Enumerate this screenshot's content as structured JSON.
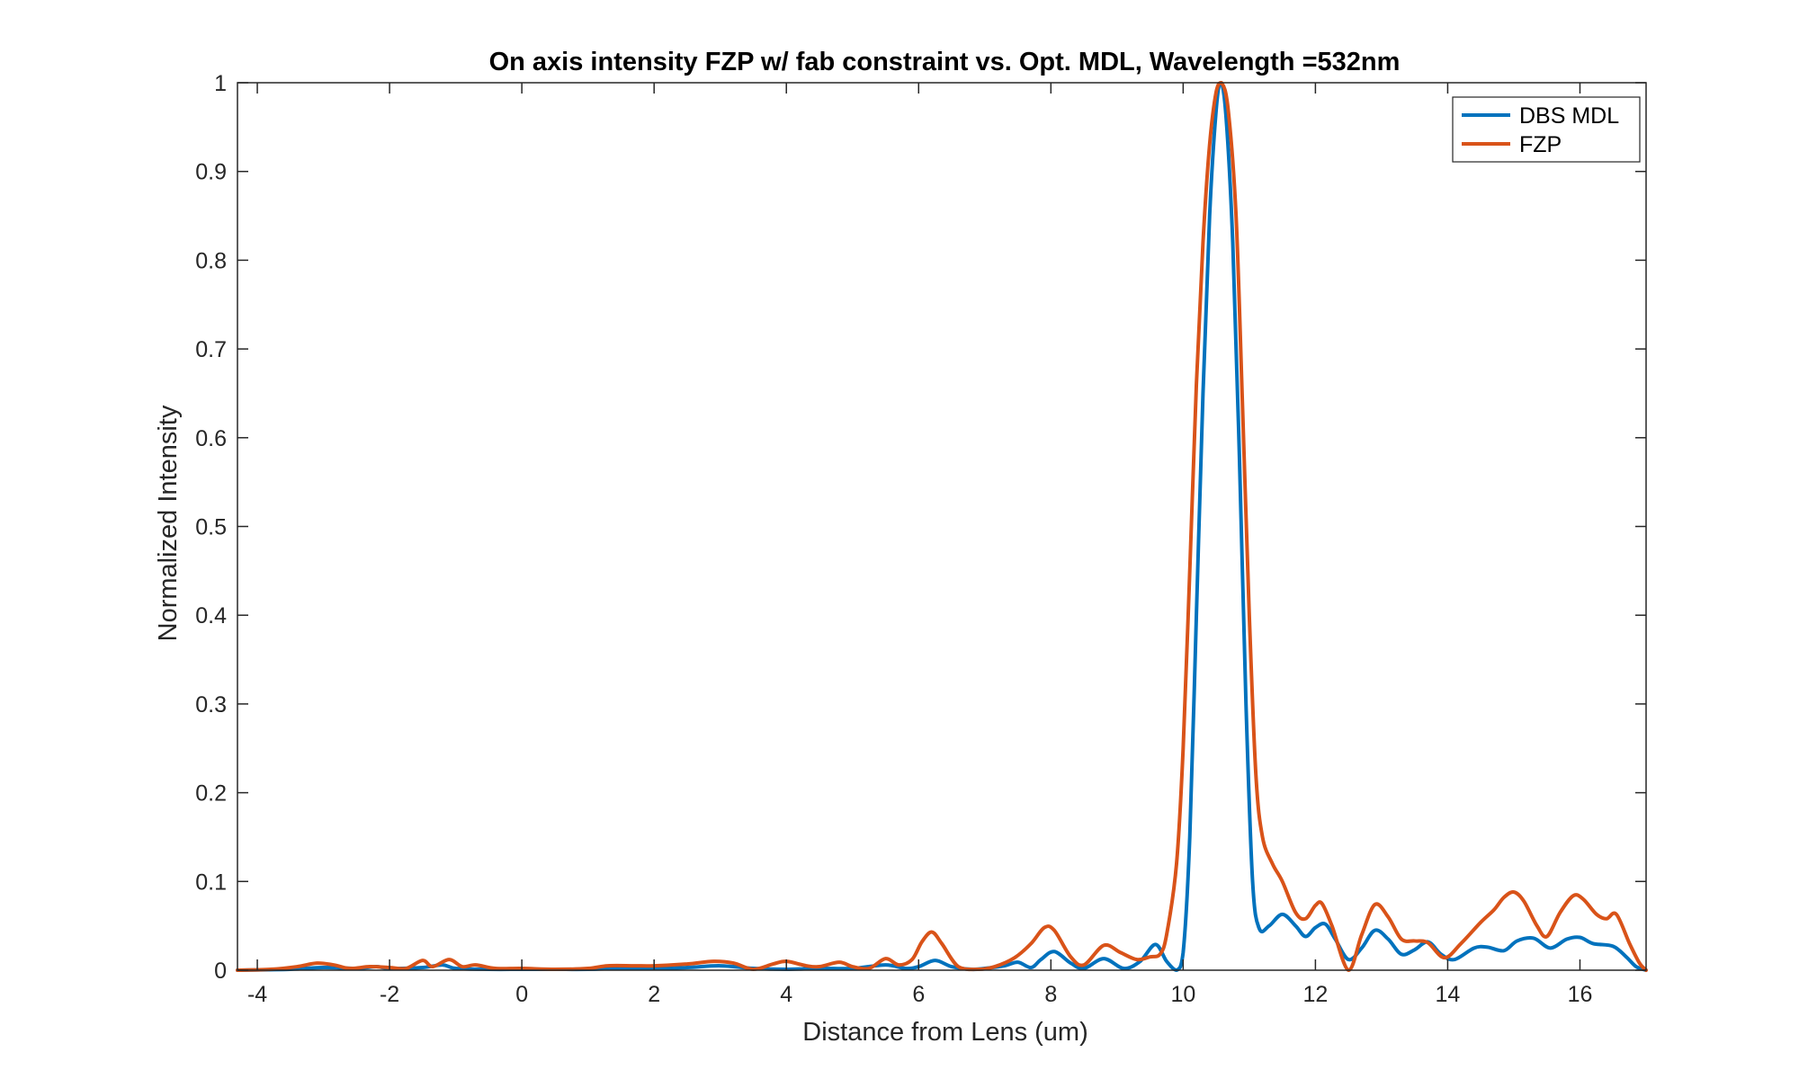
{
  "chart_data": {
    "type": "line",
    "title": "On axis intensity FZP w/ fab constraint vs. Opt. MDL, Wavelength =532nm",
    "xlabel": "Distance from Lens (um)",
    "ylabel": "Normalized Intensity",
    "xlim": [
      -4.3,
      17.0
    ],
    "ylim": [
      0,
      1
    ],
    "xticks": [
      -4,
      -2,
      0,
      2,
      4,
      6,
      8,
      10,
      12,
      14,
      16
    ],
    "yticks": [
      0,
      0.1,
      0.2,
      0.3,
      0.4,
      0.5,
      0.6,
      0.7,
      0.8,
      0.9,
      1
    ],
    "ytick_labels": [
      "0",
      "0.1",
      "0.2",
      "0.3",
      "0.4",
      "0.5",
      "0.6",
      "0.7",
      "0.8",
      "0.9",
      "1"
    ],
    "grid": false,
    "legend_position": "top-right",
    "series": [
      {
        "name": "DBS MDL",
        "color": "#0072BD",
        "points": [
          [
            -4.3,
            0.0
          ],
          [
            -3.5,
            0.001
          ],
          [
            -3.0,
            0.003
          ],
          [
            -2.5,
            0.002
          ],
          [
            -2.2,
            0.004
          ],
          [
            -2.0,
            0.002
          ],
          [
            -1.5,
            0.003
          ],
          [
            -1.2,
            0.006
          ],
          [
            -1.0,
            0.002
          ],
          [
            -0.5,
            0.001
          ],
          [
            0.0,
            0.001
          ],
          [
            0.5,
            0.001
          ],
          [
            1.0,
            0.001
          ],
          [
            1.5,
            0.002
          ],
          [
            2.0,
            0.002
          ],
          [
            2.5,
            0.003
          ],
          [
            3.0,
            0.005
          ],
          [
            3.5,
            0.002
          ],
          [
            4.0,
            0.001
          ],
          [
            4.5,
            0.002
          ],
          [
            5.0,
            0.002
          ],
          [
            5.5,
            0.006
          ],
          [
            5.8,
            0.002
          ],
          [
            6.0,
            0.004
          ],
          [
            6.25,
            0.011
          ],
          [
            6.5,
            0.004
          ],
          [
            6.8,
            0.001
          ],
          [
            7.0,
            0.002
          ],
          [
            7.3,
            0.005
          ],
          [
            7.5,
            0.009
          ],
          [
            7.7,
            0.003
          ],
          [
            7.85,
            0.012
          ],
          [
            8.05,
            0.021
          ],
          [
            8.3,
            0.008
          ],
          [
            8.5,
            0.002
          ],
          [
            8.8,
            0.013
          ],
          [
            9.1,
            0.002
          ],
          [
            9.35,
            0.01
          ],
          [
            9.58,
            0.029
          ],
          [
            9.75,
            0.01
          ],
          [
            9.9,
            0.0
          ],
          [
            10.0,
            0.02
          ],
          [
            10.1,
            0.15
          ],
          [
            10.2,
            0.4
          ],
          [
            10.3,
            0.65
          ],
          [
            10.4,
            0.85
          ],
          [
            10.5,
            0.97
          ],
          [
            10.57,
            1.0
          ],
          [
            10.65,
            0.96
          ],
          [
            10.75,
            0.82
          ],
          [
            10.85,
            0.58
          ],
          [
            10.95,
            0.3
          ],
          [
            11.05,
            0.1
          ],
          [
            11.15,
            0.047
          ],
          [
            11.3,
            0.05
          ],
          [
            11.5,
            0.063
          ],
          [
            11.7,
            0.05
          ],
          [
            11.85,
            0.038
          ],
          [
            12.0,
            0.048
          ],
          [
            12.15,
            0.052
          ],
          [
            12.3,
            0.035
          ],
          [
            12.5,
            0.012
          ],
          [
            12.7,
            0.025
          ],
          [
            12.9,
            0.045
          ],
          [
            13.1,
            0.035
          ],
          [
            13.3,
            0.018
          ],
          [
            13.5,
            0.023
          ],
          [
            13.7,
            0.032
          ],
          [
            13.9,
            0.018
          ],
          [
            14.1,
            0.012
          ],
          [
            14.4,
            0.025
          ],
          [
            14.6,
            0.026
          ],
          [
            14.85,
            0.022
          ],
          [
            15.05,
            0.033
          ],
          [
            15.3,
            0.036
          ],
          [
            15.55,
            0.025
          ],
          [
            15.8,
            0.035
          ],
          [
            16.0,
            0.037
          ],
          [
            16.2,
            0.03
          ],
          [
            16.5,
            0.027
          ],
          [
            16.7,
            0.015
          ],
          [
            16.85,
            0.004
          ],
          [
            17.0,
            0.0
          ]
        ]
      },
      {
        "name": "FZP",
        "color": "#D95319",
        "points": [
          [
            -4.3,
            0.0
          ],
          [
            -3.8,
            0.001
          ],
          [
            -3.4,
            0.004
          ],
          [
            -3.1,
            0.008
          ],
          [
            -2.85,
            0.006
          ],
          [
            -2.6,
            0.002
          ],
          [
            -2.3,
            0.004
          ],
          [
            -2.0,
            0.003
          ],
          [
            -1.75,
            0.002
          ],
          [
            -1.5,
            0.011
          ],
          [
            -1.35,
            0.004
          ],
          [
            -1.1,
            0.012
          ],
          [
            -0.9,
            0.004
          ],
          [
            -0.7,
            0.006
          ],
          [
            -0.4,
            0.002
          ],
          [
            0.0,
            0.002
          ],
          [
            0.5,
            0.001
          ],
          [
            1.0,
            0.002
          ],
          [
            1.3,
            0.005
          ],
          [
            1.7,
            0.005
          ],
          [
            2.0,
            0.005
          ],
          [
            2.5,
            0.007
          ],
          [
            2.9,
            0.01
          ],
          [
            3.2,
            0.008
          ],
          [
            3.5,
            0.001
          ],
          [
            3.8,
            0.007
          ],
          [
            4.0,
            0.01
          ],
          [
            4.3,
            0.005
          ],
          [
            4.5,
            0.004
          ],
          [
            4.8,
            0.009
          ],
          [
            5.0,
            0.004
          ],
          [
            5.25,
            0.002
          ],
          [
            5.5,
            0.013
          ],
          [
            5.7,
            0.006
          ],
          [
            5.9,
            0.012
          ],
          [
            6.05,
            0.032
          ],
          [
            6.2,
            0.043
          ],
          [
            6.35,
            0.03
          ],
          [
            6.6,
            0.004
          ],
          [
            6.9,
            0.001
          ],
          [
            7.15,
            0.004
          ],
          [
            7.45,
            0.014
          ],
          [
            7.7,
            0.03
          ],
          [
            7.9,
            0.048
          ],
          [
            8.05,
            0.045
          ],
          [
            8.3,
            0.015
          ],
          [
            8.5,
            0.006
          ],
          [
            8.8,
            0.028
          ],
          [
            9.05,
            0.02
          ],
          [
            9.3,
            0.012
          ],
          [
            9.5,
            0.015
          ],
          [
            9.65,
            0.018
          ],
          [
            9.75,
            0.04
          ],
          [
            9.9,
            0.12
          ],
          [
            10.0,
            0.25
          ],
          [
            10.1,
            0.45
          ],
          [
            10.2,
            0.66
          ],
          [
            10.3,
            0.82
          ],
          [
            10.4,
            0.93
          ],
          [
            10.5,
            0.99
          ],
          [
            10.58,
            1.0
          ],
          [
            10.68,
            0.97
          ],
          [
            10.8,
            0.85
          ],
          [
            10.9,
            0.63
          ],
          [
            11.0,
            0.4
          ],
          [
            11.1,
            0.22
          ],
          [
            11.2,
            0.15
          ],
          [
            11.35,
            0.12
          ],
          [
            11.5,
            0.1
          ],
          [
            11.7,
            0.065
          ],
          [
            11.85,
            0.058
          ],
          [
            12.0,
            0.073
          ],
          [
            12.1,
            0.075
          ],
          [
            12.25,
            0.05
          ],
          [
            12.5,
            0.0
          ],
          [
            12.7,
            0.04
          ],
          [
            12.9,
            0.074
          ],
          [
            13.1,
            0.06
          ],
          [
            13.3,
            0.035
          ],
          [
            13.5,
            0.033
          ],
          [
            13.7,
            0.031
          ],
          [
            13.95,
            0.014
          ],
          [
            14.2,
            0.03
          ],
          [
            14.5,
            0.054
          ],
          [
            14.7,
            0.068
          ],
          [
            14.85,
            0.082
          ],
          [
            15.0,
            0.088
          ],
          [
            15.15,
            0.078
          ],
          [
            15.35,
            0.05
          ],
          [
            15.5,
            0.038
          ],
          [
            15.7,
            0.065
          ],
          [
            15.9,
            0.084
          ],
          [
            16.05,
            0.08
          ],
          [
            16.25,
            0.063
          ],
          [
            16.4,
            0.058
          ],
          [
            16.55,
            0.063
          ],
          [
            16.75,
            0.03
          ],
          [
            16.9,
            0.008
          ],
          [
            17.0,
            0.0
          ]
        ]
      }
    ]
  }
}
